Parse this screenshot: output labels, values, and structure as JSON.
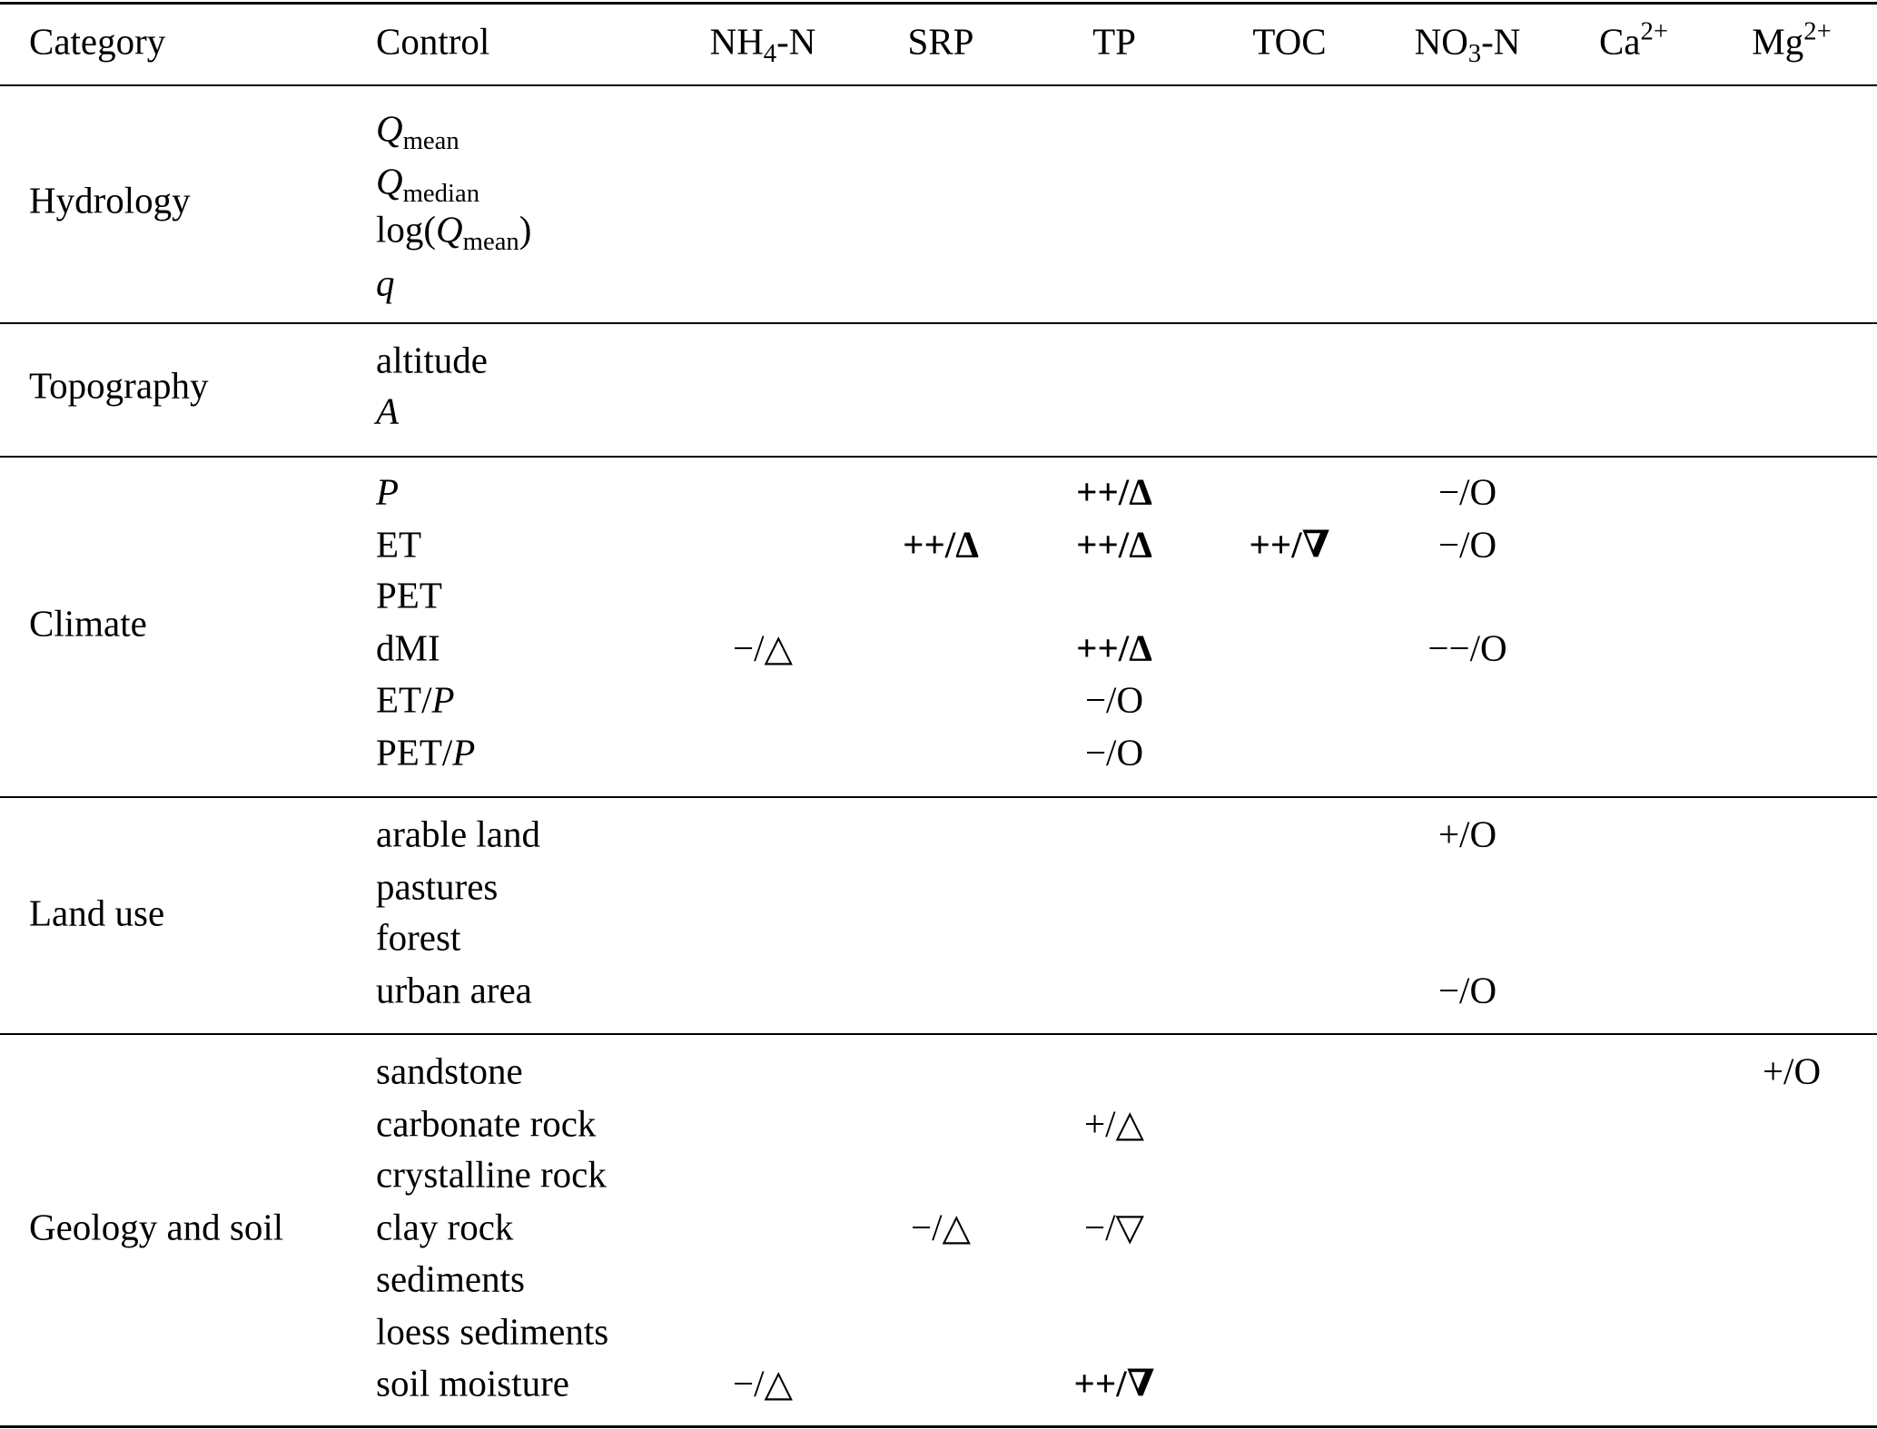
{
  "header": {
    "category": "Category",
    "control": "Control",
    "columns": [
      {
        "key": "nh4",
        "parts": [
          {
            "t": "NH"
          },
          {
            "t": "4",
            "sub": true
          },
          {
            "t": "-N"
          }
        ]
      },
      {
        "key": "srp",
        "parts": [
          {
            "t": "SRP"
          }
        ]
      },
      {
        "key": "tp",
        "parts": [
          {
            "t": "TP"
          }
        ]
      },
      {
        "key": "toc",
        "parts": [
          {
            "t": "TOC"
          }
        ]
      },
      {
        "key": "no3",
        "parts": [
          {
            "t": "NO"
          },
          {
            "t": "3",
            "sub": true
          },
          {
            "t": "-N"
          }
        ]
      },
      {
        "key": "ca",
        "parts": [
          {
            "t": "Ca"
          },
          {
            "t": "2+",
            "sup": true
          }
        ]
      },
      {
        "key": "mg",
        "parts": [
          {
            "t": "Mg"
          },
          {
            "t": "2+",
            "sup": true
          }
        ]
      }
    ]
  },
  "sections": [
    {
      "category": "Hydrology",
      "rows": [
        {
          "control": [
            {
              "t": "Q",
              "i": true
            },
            {
              "t": "mean",
              "sub": true
            }
          ],
          "cells": [
            "",
            "",
            "",
            "",
            "",
            "",
            ""
          ]
        },
        {
          "control": [
            {
              "t": "Q",
              "i": true
            },
            {
              "t": "median",
              "sub": true
            }
          ],
          "cells": [
            "",
            "",
            "",
            "",
            "",
            "",
            ""
          ]
        },
        {
          "control": [
            {
              "t": "log("
            },
            {
              "t": "Q",
              "i": true
            },
            {
              "t": "mean",
              "sub": true
            },
            {
              "t": ")"
            }
          ],
          "cells": [
            "",
            "",
            "",
            "",
            "",
            "",
            ""
          ]
        },
        {
          "control": [
            {
              "t": "q",
              "i": true
            }
          ],
          "cells": [
            "",
            "",
            "",
            "",
            "",
            "",
            ""
          ]
        }
      ]
    },
    {
      "category": "Topography",
      "rows": [
        {
          "control": [
            {
              "t": "altitude"
            }
          ],
          "cells": [
            "",
            "",
            "",
            "",
            "",
            "",
            ""
          ]
        },
        {
          "control": [
            {
              "t": "A",
              "i": true
            }
          ],
          "cells": [
            "",
            "",
            "",
            "",
            "",
            "",
            ""
          ]
        }
      ]
    },
    {
      "category": "Climate",
      "rows": [
        {
          "control": [
            {
              "t": "P",
              "i": true
            }
          ],
          "cells": [
            "",
            "",
            "++/Δ",
            "",
            "−/O",
            "",
            ""
          ]
        },
        {
          "control": [
            {
              "t": "ET"
            }
          ],
          "cells": [
            "",
            "++/Δ",
            "++/Δ",
            "++/∇",
            "−/O",
            "",
            ""
          ]
        },
        {
          "control": [
            {
              "t": "PET"
            }
          ],
          "cells": [
            "",
            "",
            "",
            "",
            "",
            "",
            ""
          ]
        },
        {
          "control": [
            {
              "t": "dMI"
            }
          ],
          "cells": [
            "−/△",
            "",
            "++/Δ",
            "",
            "−−/O",
            "",
            ""
          ]
        },
        {
          "control": [
            {
              "t": "ET/"
            },
            {
              "t": "P",
              "i": true
            }
          ],
          "cells": [
            "",
            "",
            "−/O",
            "",
            "",
            "",
            ""
          ]
        },
        {
          "control": [
            {
              "t": "PET/"
            },
            {
              "t": "P",
              "i": true
            }
          ],
          "cells": [
            "",
            "",
            "−/O",
            "",
            "",
            "",
            ""
          ]
        }
      ]
    },
    {
      "category": "Land use",
      "rows": [
        {
          "control": [
            {
              "t": "arable land"
            }
          ],
          "cells": [
            "",
            "",
            "",
            "",
            "+/O",
            "",
            ""
          ]
        },
        {
          "control": [
            {
              "t": "pastures"
            }
          ],
          "cells": [
            "",
            "",
            "",
            "",
            "",
            "",
            ""
          ]
        },
        {
          "control": [
            {
              "t": "forest"
            }
          ],
          "cells": [
            "",
            "",
            "",
            "",
            "",
            "",
            ""
          ]
        },
        {
          "control": [
            {
              "t": "urban area"
            }
          ],
          "cells": [
            "",
            "",
            "",
            "",
            "−/O",
            "",
            ""
          ]
        }
      ]
    },
    {
      "category": "Geology and soil",
      "rows": [
        {
          "control": [
            {
              "t": "sandstone"
            }
          ],
          "cells": [
            "",
            "",
            "",
            "",
            "",
            "",
            "+/O"
          ]
        },
        {
          "control": [
            {
              "t": "carbonate rock"
            }
          ],
          "cells": [
            "",
            "",
            "+/△",
            "",
            "",
            "",
            ""
          ]
        },
        {
          "control": [
            {
              "t": "crystalline rock"
            }
          ],
          "cells": [
            "",
            "",
            "",
            "",
            "",
            "",
            ""
          ]
        },
        {
          "control": [
            {
              "t": "clay rock"
            }
          ],
          "cells": [
            "",
            "−/△",
            "−/▽",
            "",
            "",
            "",
            ""
          ]
        },
        {
          "control": [
            {
              "t": "sediments"
            }
          ],
          "cells": [
            "",
            "",
            "",
            "",
            "",
            "",
            ""
          ]
        },
        {
          "control": [
            {
              "t": "loess sediments"
            }
          ],
          "cells": [
            "",
            "",
            "",
            "",
            "",
            "",
            ""
          ]
        },
        {
          "control": [
            {
              "t": "soil moisture"
            }
          ],
          "cells": [
            "−/△",
            "",
            "++/∇",
            "",
            "",
            "",
            ""
          ]
        }
      ]
    }
  ]
}
